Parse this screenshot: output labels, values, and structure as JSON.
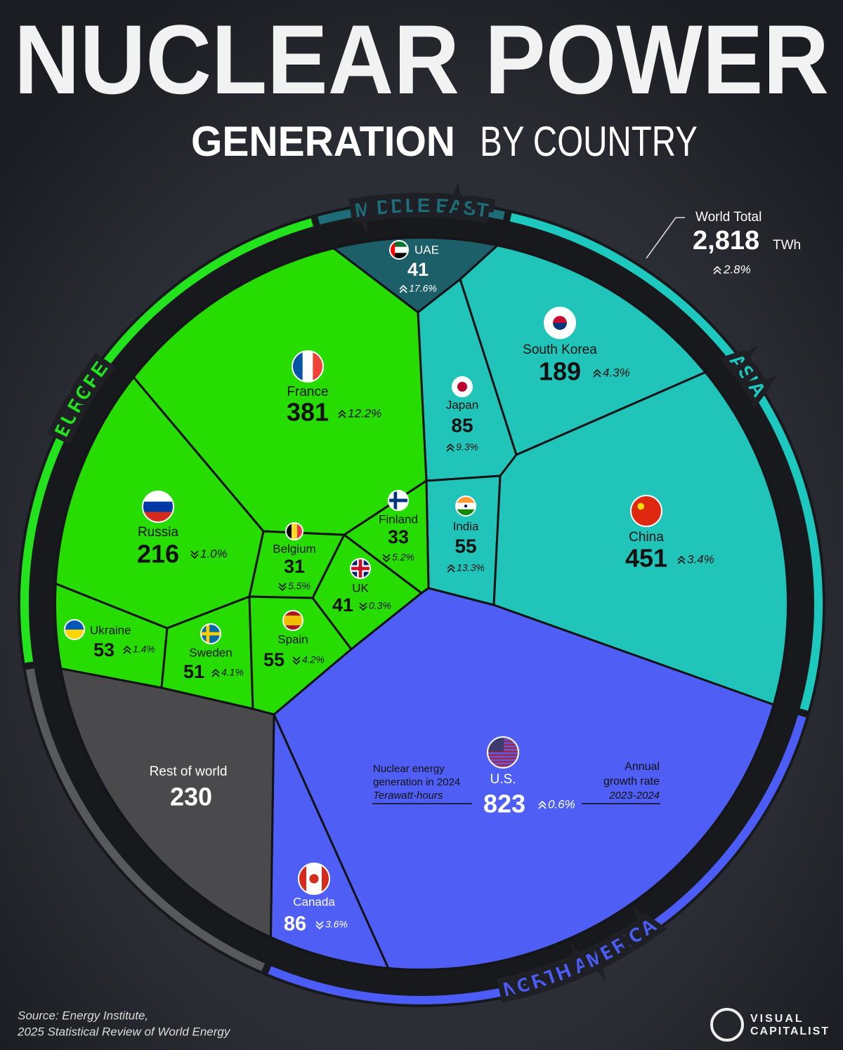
{
  "chart_data": {
    "type": "voronoi",
    "title": "NUCLEAR POWER",
    "subtitle": [
      "GENERATION",
      "BY COUNTRY"
    ],
    "regions": [
      {
        "name": "EUROPE",
        "color": "#22e31c"
      },
      {
        "name": "MIDDLE EAST",
        "color": "#1d6c78"
      },
      {
        "name": "ASIA",
        "color": "#1dc8bf"
      },
      {
        "name": "NORTH AMERICA",
        "color": "#4b5df6"
      }
    ],
    "rest_color": "#58595c",
    "countries": [
      {
        "name": "UAE",
        "value": 41,
        "growth": 17.6,
        "growth_label": "17.6%",
        "color": "#1d5f69"
      },
      {
        "name": "South Korea",
        "value": 189,
        "growth": 4.3,
        "growth_label": "4.3%",
        "color": "#20c4b8"
      },
      {
        "name": "Japan",
        "value": 85,
        "growth": 9.3,
        "growth_label": "9.3%",
        "color": "#20c4b8"
      },
      {
        "name": "India",
        "value": 55,
        "growth": 13.3,
        "growth_label": "13.3%",
        "color": "#20c4b8"
      },
      {
        "name": "China",
        "value": 451,
        "growth": 3.4,
        "growth_label": "3.4%",
        "color": "#20c4b8"
      },
      {
        "name": "France",
        "value": 381,
        "growth": 12.2,
        "growth_label": "12.2%",
        "color": "#26dc00"
      },
      {
        "name": "Russia",
        "value": 216,
        "growth": -1.0,
        "growth_label": "1.0%",
        "color": "#26dc00"
      },
      {
        "name": "Finland",
        "value": 33,
        "growth": -5.2,
        "growth_label": "5.2%",
        "color": "#26dc00"
      },
      {
        "name": "Belgium",
        "value": 31,
        "growth": -5.5,
        "growth_label": "5.5%",
        "color": "#26dc00"
      },
      {
        "name": "UK",
        "value": 41,
        "growth": -0.3,
        "growth_label": "0.3%",
        "color": "#26dc00"
      },
      {
        "name": "Ukraine",
        "value": 53,
        "growth": 1.4,
        "growth_label": "1.4%",
        "color": "#26dc00"
      },
      {
        "name": "Sweden",
        "value": 51,
        "growth": 4.1,
        "growth_label": "4.1%",
        "color": "#26dc00"
      },
      {
        "name": "Spain",
        "value": 55,
        "growth": -4.2,
        "growth_label": "4.2%",
        "color": "#26dc00"
      },
      {
        "name": "U.S.",
        "value": 823,
        "growth": 0.6,
        "growth_label": "0.6%",
        "color": "#4f5ff5"
      },
      {
        "name": "Canada",
        "value": 86,
        "growth": -3.6,
        "growth_label": "3.6%",
        "color": "#4f5ff5"
      },
      {
        "name": "Rest of world",
        "value": 230,
        "color": "#4a4a4c"
      }
    ],
    "world_total": {
      "label": "World Total",
      "value": 2818,
      "value_label": "2,818",
      "unit": "TWh",
      "growth": 2.8,
      "growth_label": "2.8%"
    },
    "annotations": {
      "value_note": [
        "Nuclear energy",
        "generation in 2024",
        "Terawatt-hours"
      ],
      "growth_note": [
        "Annual",
        "growth rate",
        "2023-2024"
      ]
    },
    "source": [
      "Source: Energy Institute,",
      "2025 Statistical Review of World Energy"
    ],
    "brand": [
      "VISUAL",
      "CAPITALIST"
    ]
  }
}
